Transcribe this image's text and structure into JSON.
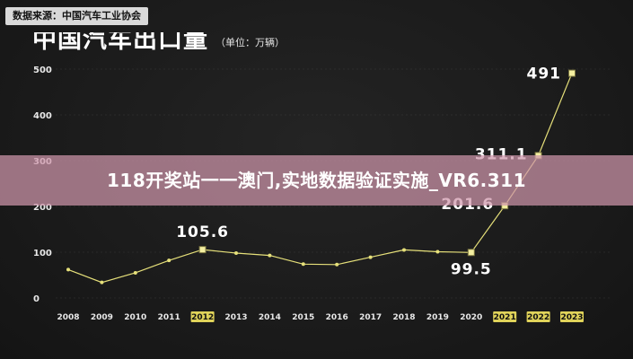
{
  "source": "数据来源：中国汽车工业协会",
  "heading": "中国汽车出口量",
  "unit": "（单位：万辆）",
  "banner_text": "118开奖站一一澳门,实地数据验证实施_VR6.311",
  "colors": {
    "background": "#1b1b1b",
    "line": "#e6e07a",
    "highlight_tag": "#e0d35a",
    "grid": "#555555",
    "banner": "#ce96aa"
  },
  "chart_data": {
    "type": "line",
    "x": [
      "2008",
      "2009",
      "2010",
      "2011",
      "2012",
      "2013",
      "2014",
      "2015",
      "2016",
      "2017",
      "2018",
      "2019",
      "2020",
      "2021",
      "2022",
      "2023"
    ],
    "highlighted_x": [
      "2012",
      "2021",
      "2022",
      "2023"
    ],
    "series": [
      {
        "values": [
          62,
          34,
          55,
          82,
          105.6,
          98,
          93,
          74,
          73,
          89,
          105,
          101,
          99.5,
          201.6,
          311.1,
          491
        ]
      }
    ],
    "data_labels": [
      {
        "x": "2012",
        "text": "105.6"
      },
      {
        "x": "2020",
        "text": "99.5"
      },
      {
        "x": "2021",
        "text": "201.6"
      },
      {
        "x": "2022",
        "text": "311.1"
      },
      {
        "x": "2023",
        "text": "491"
      }
    ],
    "y_ticks": [
      0,
      100,
      200,
      300,
      400,
      500
    ],
    "ylim": [
      0,
      500
    ],
    "grid": true
  }
}
